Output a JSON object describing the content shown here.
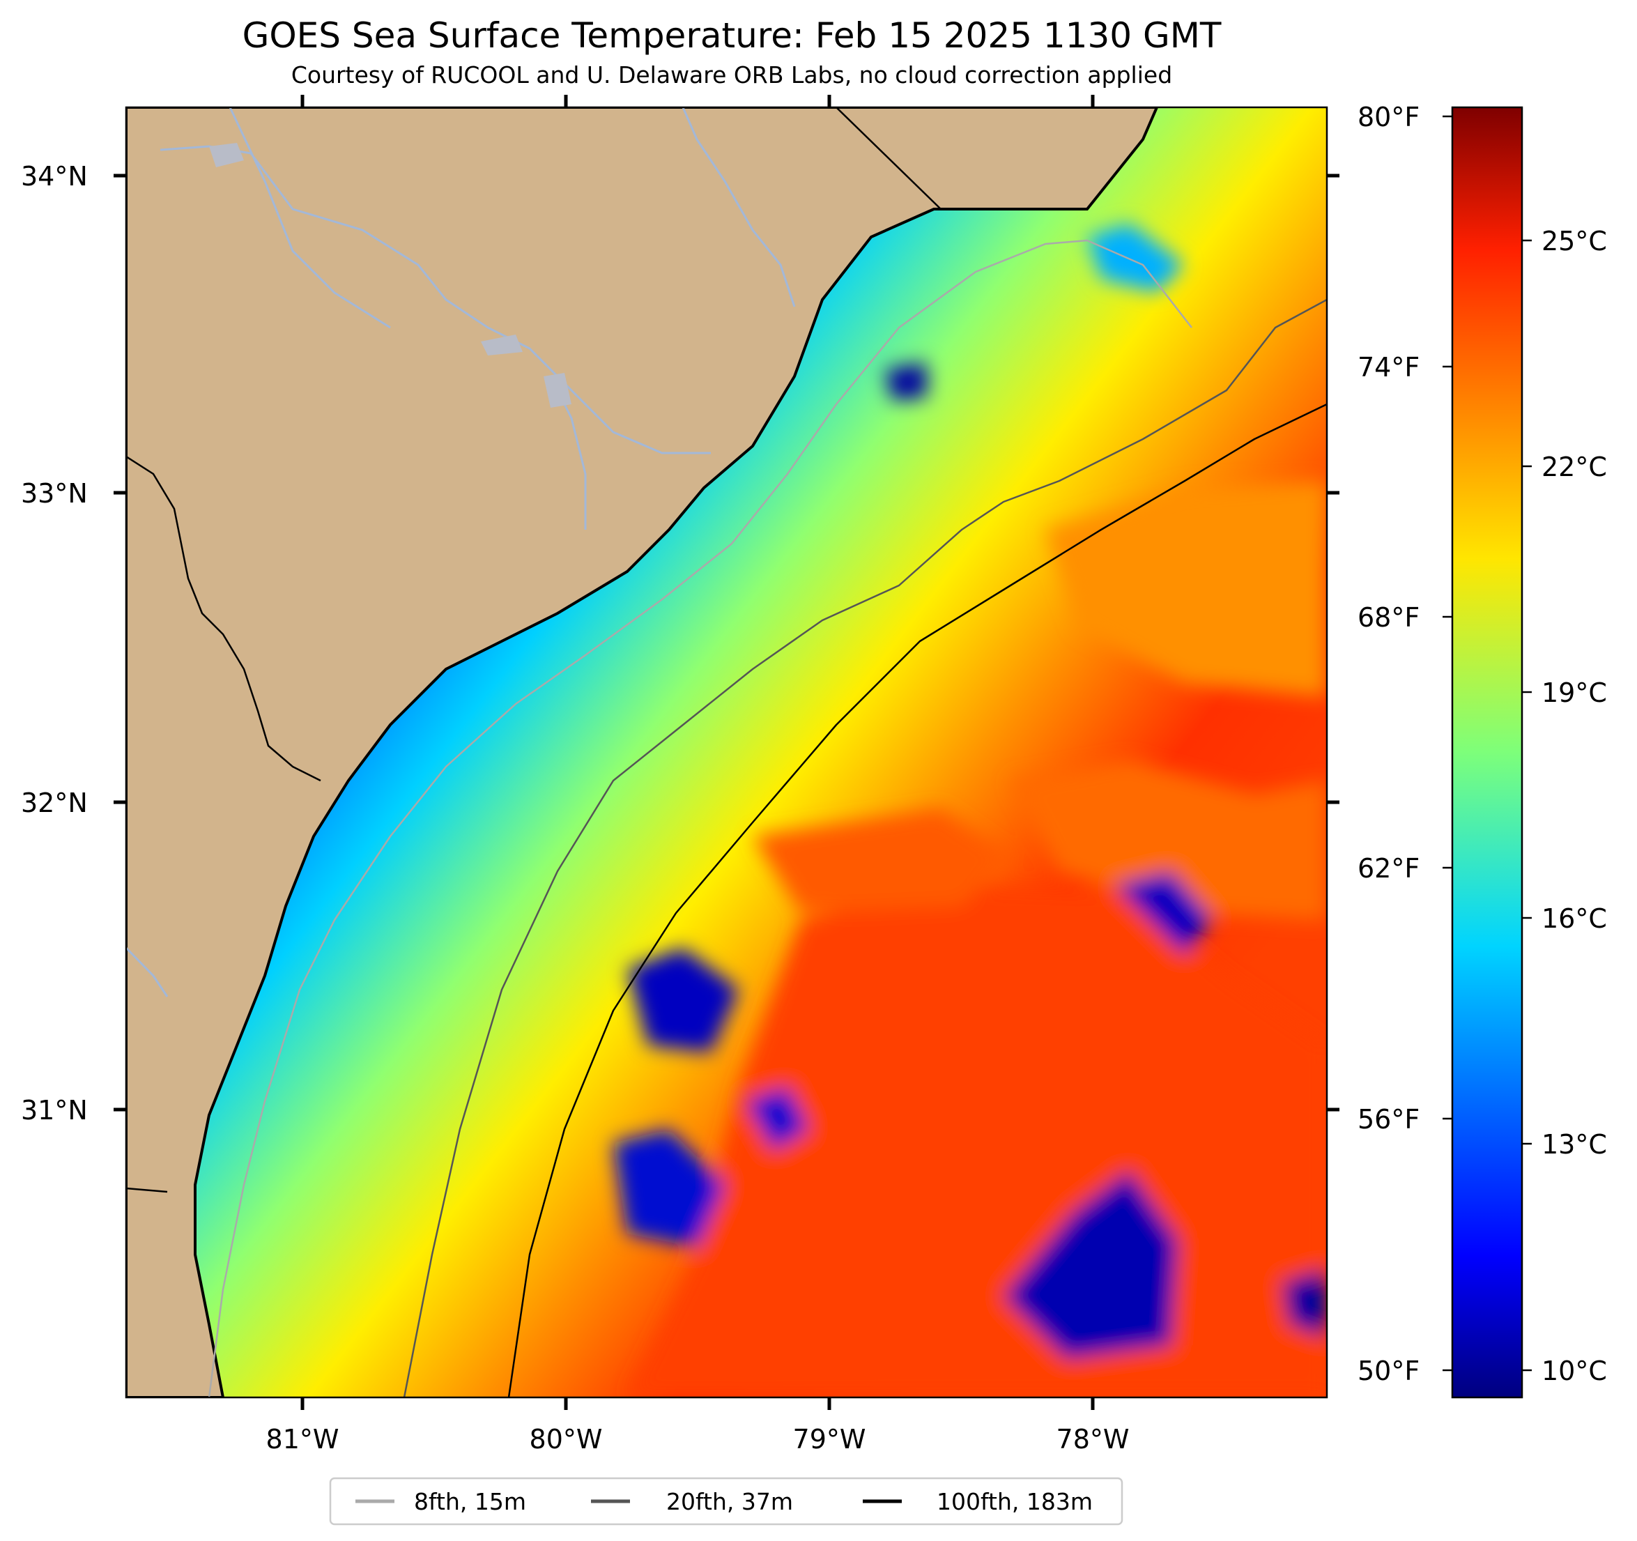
{
  "title": "GOES Sea Surface Temperature: Feb 15 2025 1130 GMT",
  "subtitle": "Courtesy of RUCOOL and U. Delaware ORB Labs, no cloud correction applied",
  "map": {
    "lat_labels": [
      "34°N",
      "33°N",
      "32°N",
      "31°N"
    ],
    "lon_labels": [
      "81°W",
      "80°W",
      "79°W",
      "78°W"
    ],
    "colors": {
      "land": "#d2b48c",
      "river": "#a3b8d8",
      "coast": "#000000"
    }
  },
  "colorbar": {
    "colormap": "jet",
    "fahrenheit_labels": [
      "80°F",
      "74°F",
      "68°F",
      "62°F",
      "56°F",
      "50°F"
    ],
    "celsius_labels": [
      "25°C",
      "22°C",
      "19°C",
      "16°C",
      "13°C",
      "10°C"
    ]
  },
  "legend": {
    "items": [
      {
        "label": "8fth, 15m",
        "color": "#aaaaaa"
      },
      {
        "label": "20fth, 37m",
        "color": "#555555"
      },
      {
        "label": "100fth, 183m",
        "color": "#000000"
      }
    ]
  }
}
